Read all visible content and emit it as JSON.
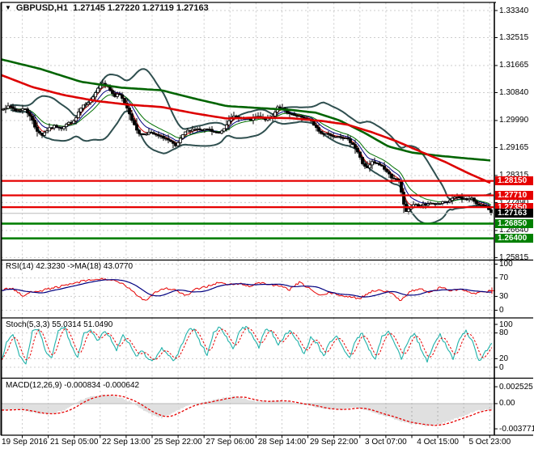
{
  "ui": {
    "title_symbol": "GBPUSD,H1",
    "title_quotes": "1.27145 1.27220 1.27119 1.27163",
    "rsi_label": "RSI(14) 42.3230  ->MA(18) 43.0770",
    "stoch_label": "Stoch(5,3,3) 55.0314 51.0490",
    "macd_label": "MACD(12,26,9) -0.000834 -0.000642",
    "dropdown_icon": "symbol-menu-triangle",
    "price_ticks": [
      "1.33340",
      "1.32515",
      "1.31665",
      "1.30840",
      "1.29990",
      "1.29165",
      "1.28315",
      "1.27490",
      "1.26640",
      "1.25815"
    ],
    "rsi_ticks": [
      "100",
      "70",
      "30",
      "0"
    ],
    "stoch_ticks": [
      "100",
      "80",
      "20",
      "0"
    ],
    "macd_ticks": [
      "0.002525",
      "0.00",
      "-0.003771"
    ],
    "badges": [
      {
        "text": "1.28150",
        "kind": "resistance"
      },
      {
        "text": "1.27710",
        "kind": "resistance"
      },
      {
        "text": "1.27350",
        "kind": "resistance"
      },
      {
        "text": "1.27163",
        "kind": "current"
      },
      {
        "text": "1.26850",
        "kind": "support"
      },
      {
        "text": "1.26400",
        "kind": "support"
      }
    ],
    "date_labels": [
      "19 Sep 2016",
      "21 Sep 05:00",
      "22 Sep 13:00",
      "25 Sep 22:00",
      "27 Sep 06:00",
      "28 Sep 14:00",
      "29 Sep 22:00",
      "3 Oct 07:00",
      "4 Oct 15:00",
      "5 Oct 23:00"
    ]
  },
  "colors": {
    "candle": "#000000",
    "bollinger": "#2F4F4F",
    "ma_red": "#dd0000",
    "ma_green": "#006400",
    "ema_fast_red": "#cc0000",
    "ema_navy": "#000080",
    "ema_green": "#007000",
    "resistance": "#e60000",
    "support": "#008000",
    "current_line": "#bcbcbc",
    "badge_current_bg": "#000000",
    "rsi": "#e60000",
    "rsi_ma": "#000080",
    "stoch_k": "#20b2aa",
    "stoch_d": "#e60000",
    "macd_hist": "#c0c0c0",
    "macd_signal": "#e60000",
    "grid": "#cccccc",
    "border": "#000000"
  },
  "chart_data": [
    {
      "type": "candlestick",
      "title": "GBPUSD,H1",
      "open": 1.27145,
      "high": 1.2722,
      "low": 1.27119,
      "close": 1.27163,
      "ylim": [
        1.25803,
        1.33586
      ],
      "y_ticks": [
        1.3334,
        1.32515,
        1.31665,
        1.3084,
        1.2999,
        1.29165,
        1.28315,
        1.2749,
        1.2664,
        1.25815
      ],
      "x_tick_labels": [
        "19 Sep 2016",
        "21 Sep 05:00",
        "22 Sep 13:00",
        "25 Sep 22:00",
        "27 Sep 06:00",
        "28 Sep 14:00",
        "29 Sep 22:00",
        "3 Oct 07:00",
        "4 Oct 15:00",
        "5 Oct 23:00"
      ],
      "levels": {
        "resistance": [
          1.2815,
          1.2771,
          1.2735
        ],
        "support": [
          1.2685,
          1.264
        ],
        "current_price": 1.27163
      },
      "close_anchors": [
        [
          2,
          1.3035
        ],
        [
          12,
          1.3042
        ],
        [
          20,
          1.3028
        ],
        [
          30,
          1.3036
        ],
        [
          38,
          1.3012
        ],
        [
          44,
          1.2972
        ],
        [
          52,
          1.2955
        ],
        [
          60,
          1.2973
        ],
        [
          68,
          1.2983
        ],
        [
          76,
          1.2976
        ],
        [
          84,
          1.2991
        ],
        [
          92,
          1.2996
        ],
        [
          98,
          1.303
        ],
        [
          104,
          1.3046
        ],
        [
          110,
          1.3052
        ],
        [
          116,
          1.3078
        ],
        [
          122,
          1.3102
        ],
        [
          127,
          1.3115
        ],
        [
          132,
          1.3106
        ],
        [
          137,
          1.3088
        ],
        [
          142,
          1.3072
        ],
        [
          147,
          1.308
        ],
        [
          153,
          1.3058
        ],
        [
          159,
          1.3028
        ],
        [
          165,
          1.2988
        ],
        [
          171,
          1.2962
        ],
        [
          177,
          1.2955
        ],
        [
          183,
          1.2963
        ],
        [
          190,
          1.2957
        ],
        [
          197,
          1.295
        ],
        [
          204,
          1.2946
        ],
        [
          211,
          1.2933
        ],
        [
          217,
          1.292
        ],
        [
          223,
          1.2942
        ],
        [
          229,
          1.2964
        ],
        [
          236,
          1.2971
        ],
        [
          243,
          1.2973
        ],
        [
          250,
          1.2968
        ],
        [
          257,
          1.2973
        ],
        [
          264,
          1.2963
        ],
        [
          271,
          1.296
        ],
        [
          277,
          1.2976
        ],
        [
          283,
          1.3001
        ],
        [
          289,
          1.3011
        ],
        [
          296,
          1.3008
        ],
        [
          303,
          1.3004
        ],
        [
          310,
          1.3001
        ],
        [
          317,
          1.3011
        ],
        [
          323,
          1.3008
        ],
        [
          330,
          1.3001
        ],
        [
          337,
          1.3012
        ],
        [
          343,
          1.3041
        ],
        [
          349,
          1.3035
        ],
        [
          355,
          1.3021
        ],
        [
          362,
          1.3015
        ],
        [
          369,
          1.3011
        ],
        [
          376,
          1.3007
        ],
        [
          383,
          1.3
        ],
        [
          390,
          1.2981
        ],
        [
          396,
          1.2959
        ],
        [
          403,
          1.2961
        ],
        [
          410,
          1.2951
        ],
        [
          417,
          1.2953
        ],
        [
          424,
          1.2947
        ],
        [
          430,
          1.294
        ],
        [
          436,
          1.2928
        ],
        [
          442,
          1.2903
        ],
        [
          448,
          1.2868
        ],
        [
          454,
          1.2853
        ],
        [
          460,
          1.2872
        ],
        [
          466,
          1.2867
        ],
        [
          472,
          1.286
        ],
        [
          478,
          1.2843
        ],
        [
          484,
          1.2826
        ],
        [
          489,
          1.2821
        ],
        [
          493,
          1.2812
        ],
        [
          497,
          1.2768
        ],
        [
          501,
          1.2721
        ],
        [
          505,
          1.2727
        ],
        [
          509,
          1.2741
        ],
        [
          513,
          1.2746
        ],
        [
          517,
          1.2736
        ],
        [
          521,
          1.2743
        ],
        [
          526,
          1.274
        ],
        [
          531,
          1.2749
        ],
        [
          536,
          1.2745
        ],
        [
          541,
          1.2743
        ],
        [
          547,
          1.2749
        ],
        [
          553,
          1.2751
        ],
        [
          559,
          1.2761
        ],
        [
          565,
          1.2766
        ],
        [
          571,
          1.2762
        ],
        [
          577,
          1.2758
        ],
        [
          583,
          1.2761
        ],
        [
          589,
          1.2746
        ],
        [
          595,
          1.2741
        ],
        [
          601,
          1.2736
        ],
        [
          605,
          1.2726
        ],
        [
          608,
          1.2716
        ]
      ],
      "ma_red_anchors": [
        [
          2,
          1.3137
        ],
        [
          40,
          1.3101
        ],
        [
          80,
          1.3076
        ],
        [
          120,
          1.3058
        ],
        [
          160,
          1.3047
        ],
        [
          200,
          1.304
        ],
        [
          240,
          1.3021
        ],
        [
          280,
          1.3005
        ],
        [
          320,
          1.3008
        ],
        [
          360,
          1.3006
        ],
        [
          400,
          1.2997
        ],
        [
          430,
          1.2986
        ],
        [
          460,
          1.2963
        ],
        [
          490,
          1.2936
        ],
        [
          520,
          1.2904
        ],
        [
          550,
          1.2873
        ],
        [
          580,
          1.2837
        ],
        [
          608,
          1.2807
        ]
      ],
      "ma_green_anchors": [
        [
          2,
          1.3185
        ],
        [
          50,
          1.3156
        ],
        [
          100,
          1.3117
        ],
        [
          150,
          1.3099
        ],
        [
          200,
          1.3091
        ],
        [
          240,
          1.3066
        ],
        [
          280,
          1.3043
        ],
        [
          320,
          1.3037
        ],
        [
          360,
          1.3031
        ],
        [
          390,
          1.3023
        ],
        [
          420,
          1.2999
        ],
        [
          450,
          1.2962
        ],
        [
          480,
          1.292
        ],
        [
          510,
          1.2901
        ],
        [
          545,
          1.2891
        ],
        [
          575,
          1.2884
        ],
        [
          608,
          1.2877
        ]
      ],
      "bollinger": {
        "period": 20,
        "deviation": 2
      },
      "fast_ma_periods": [
        4,
        8,
        13
      ]
    },
    {
      "type": "line",
      "title": "RSI(14)",
      "value": 42.323,
      "ma_period": 18,
      "ma_value": 43.077,
      "ylim": [
        0,
        100
      ],
      "y_ticks": [
        100,
        70,
        30,
        0
      ],
      "level_lines": [
        70,
        30
      ],
      "rsi_anchors": [
        [
          2,
          44
        ],
        [
          15,
          48
        ],
        [
          28,
          30
        ],
        [
          40,
          41
        ],
        [
          55,
          44
        ],
        [
          70,
          50
        ],
        [
          85,
          55
        ],
        [
          100,
          62
        ],
        [
          115,
          66
        ],
        [
          130,
          68
        ],
        [
          142,
          63
        ],
        [
          155,
          54
        ],
        [
          168,
          34
        ],
        [
          180,
          21
        ],
        [
          192,
          40
        ],
        [
          205,
          48
        ],
        [
          218,
          43
        ],
        [
          230,
          31
        ],
        [
          243,
          46
        ],
        [
          256,
          52
        ],
        [
          270,
          60
        ],
        [
          283,
          55
        ],
        [
          295,
          58
        ],
        [
          308,
          52
        ],
        [
          320,
          60
        ],
        [
          333,
          56
        ],
        [
          345,
          52
        ],
        [
          358,
          45
        ],
        [
          370,
          60
        ],
        [
          382,
          48
        ],
        [
          395,
          31
        ],
        [
          408,
          38
        ],
        [
          420,
          33
        ],
        [
          432,
          28
        ],
        [
          445,
          26
        ],
        [
          458,
          40
        ],
        [
          470,
          45
        ],
        [
          482,
          38
        ],
        [
          495,
          22
        ],
        [
          508,
          42
        ],
        [
          520,
          46
        ],
        [
          532,
          38
        ],
        [
          545,
          50
        ],
        [
          558,
          42
        ],
        [
          570,
          46
        ],
        [
          582,
          36
        ],
        [
          594,
          38
        ],
        [
          602,
          40
        ],
        [
          608,
          42.3
        ]
      ]
    },
    {
      "type": "line",
      "title": "Stoch(5,3,3)",
      "k_value": 55.0314,
      "d_value": 51.049,
      "ylim": [
        0,
        100
      ],
      "y_ticks": [
        100,
        80,
        20,
        0
      ],
      "level_lines": [
        80,
        20
      ],
      "k_anchors": [
        [
          2,
          15
        ],
        [
          8,
          60
        ],
        [
          16,
          75
        ],
        [
          24,
          30
        ],
        [
          32,
          10
        ],
        [
          40,
          85
        ],
        [
          48,
          90
        ],
        [
          56,
          40
        ],
        [
          64,
          20
        ],
        [
          72,
          85
        ],
        [
          80,
          95
        ],
        [
          88,
          50
        ],
        [
          96,
          25
        ],
        [
          104,
          80
        ],
        [
          112,
          90
        ],
        [
          120,
          60
        ],
        [
          128,
          85
        ],
        [
          136,
          70
        ],
        [
          144,
          40
        ],
        [
          152,
          75
        ],
        [
          160,
          55
        ],
        [
          168,
          25
        ],
        [
          176,
          40
        ],
        [
          184,
          15
        ],
        [
          192,
          20
        ],
        [
          200,
          45
        ],
        [
          208,
          30
        ],
        [
          216,
          15
        ],
        [
          224,
          50
        ],
        [
          232,
          85
        ],
        [
          240,
          90
        ],
        [
          248,
          55
        ],
        [
          256,
          30
        ],
        [
          264,
          80
        ],
        [
          272,
          95
        ],
        [
          280,
          70
        ],
        [
          288,
          40
        ],
        [
          296,
          85
        ],
        [
          304,
          95
        ],
        [
          312,
          75
        ],
        [
          320,
          45
        ],
        [
          328,
          90
        ],
        [
          336,
          80
        ],
        [
          344,
          50
        ],
        [
          352,
          75
        ],
        [
          360,
          85
        ],
        [
          368,
          60
        ],
        [
          376,
          30
        ],
        [
          384,
          70
        ],
        [
          392,
          55
        ],
        [
          400,
          25
        ],
        [
          408,
          60
        ],
        [
          416,
          75
        ],
        [
          424,
          45
        ],
        [
          432,
          20
        ],
        [
          440,
          65
        ],
        [
          448,
          80
        ],
        [
          456,
          40
        ],
        [
          464,
          20
        ],
        [
          472,
          70
        ],
        [
          480,
          85
        ],
        [
          488,
          55
        ],
        [
          496,
          20
        ],
        [
          504,
          60
        ],
        [
          512,
          80
        ],
        [
          520,
          45
        ],
        [
          528,
          15
        ],
        [
          536,
          55
        ],
        [
          544,
          75
        ],
        [
          552,
          50
        ],
        [
          560,
          20
        ],
        [
          568,
          65
        ],
        [
          576,
          85
        ],
        [
          584,
          60
        ],
        [
          592,
          15
        ],
        [
          600,
          35
        ],
        [
          608,
          55
        ]
      ]
    },
    {
      "type": "bar+line",
      "title": "MACD(12,26,9)",
      "macd_value": -0.000834,
      "signal_value": -0.000642,
      "ylim": [
        -0.003771,
        0.002525
      ],
      "y_ticks": [
        0.002525,
        0,
        -0.003771
      ],
      "macd_anchors": [
        [
          2,
          -0.001
        ],
        [
          20,
          -0.0008
        ],
        [
          40,
          -0.0013
        ],
        [
          60,
          -0.0016
        ],
        [
          80,
          -0.001
        ],
        [
          95,
          0.0002
        ],
        [
          110,
          0.001
        ],
        [
          125,
          0.0013
        ],
        [
          140,
          0.0012
        ],
        [
          155,
          0.0006
        ],
        [
          165,
          0.0001
        ],
        [
          175,
          -0.0008
        ],
        [
          190,
          -0.0018
        ],
        [
          200,
          -0.0021
        ],
        [
          215,
          -0.0013
        ],
        [
          225,
          -0.0007
        ],
        [
          235,
          -0.0002
        ],
        [
          245,
          0.0001
        ],
        [
          260,
          0.0004
        ],
        [
          275,
          0.0008
        ],
        [
          290,
          0.0011
        ],
        [
          305,
          0.0007
        ],
        [
          315,
          0.0004
        ],
        [
          330,
          0.0003
        ],
        [
          345,
          0.0005
        ],
        [
          355,
          0.0003
        ],
        [
          365,
          0.0
        ],
        [
          380,
          -0.0002
        ],
        [
          395,
          -0.0006
        ],
        [
          410,
          -0.0009
        ],
        [
          425,
          -0.0008
        ],
        [
          440,
          -0.0006
        ],
        [
          455,
          -0.001
        ],
        [
          470,
          -0.0016
        ],
        [
          485,
          -0.0022
        ],
        [
          500,
          -0.0028
        ],
        [
          515,
          -0.0031
        ],
        [
          530,
          -0.0034
        ],
        [
          545,
          -0.003
        ],
        [
          560,
          -0.0024
        ],
        [
          575,
          -0.0018
        ],
        [
          590,
          -0.001
        ],
        [
          600,
          -0.0009
        ],
        [
          608,
          -0.00083
        ]
      ]
    }
  ]
}
